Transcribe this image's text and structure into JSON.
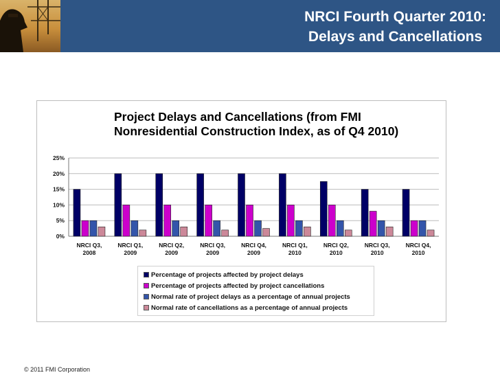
{
  "slide": {
    "title_line1": "NRCI Fourth Quarter 2010:",
    "title_line2": "Delays and Cancellations",
    "footer": "© 2011 FMI Corporation"
  },
  "colors": {
    "header_bg": "#2e5585",
    "series": [
      "#000066",
      "#cc00cc",
      "#3355aa",
      "#cc8899"
    ]
  },
  "chart_data": {
    "type": "bar",
    "title_line1": "Project Delays and Cancellations (from FMI",
    "title_line2": "Nonresidential Construction Index, as of Q4 2010)",
    "categories": [
      "NRCI Q3, 2008",
      "NRCI Q1, 2009",
      "NRCI Q2, 2009",
      "NRCI Q3, 2009",
      "NRCI Q4, 2009",
      "NRCI Q1, 2010",
      "NRCI Q2, 2010",
      "NRCI Q3, 2010",
      "NRCI Q4, 2010"
    ],
    "category_lines": [
      [
        "NRCI Q3,",
        "2008"
      ],
      [
        "NRCI Q1,",
        "2009"
      ],
      [
        "NRCI Q2,",
        "2009"
      ],
      [
        "NRCI Q3,",
        "2009"
      ],
      [
        "NRCI Q4,",
        "2009"
      ],
      [
        "NRCI Q1,",
        "2010"
      ],
      [
        "NRCI Q2,",
        "2010"
      ],
      [
        "NRCI Q3,",
        "2010"
      ],
      [
        "NRCI Q4,",
        "2010"
      ]
    ],
    "series": [
      {
        "name": "Percentage of projects affected by project delays",
        "color": "#000066",
        "values": [
          15,
          20,
          20,
          20,
          20,
          20,
          17.5,
          15,
          15
        ]
      },
      {
        "name": "Percentage of projects affected by project cancellations",
        "color": "#cc00cc",
        "values": [
          5,
          10,
          10,
          10,
          10,
          10,
          10,
          8,
          5
        ]
      },
      {
        "name": "Normal rate of project delays as a percentage of annual projects",
        "color": "#3355aa",
        "values": [
          5,
          5,
          5,
          5,
          5,
          5,
          5,
          5,
          5
        ]
      },
      {
        "name": "Normal rate of cancellations as a percentage of annual projects",
        "color": "#cc8899",
        "values": [
          3,
          2,
          3,
          2,
          2.5,
          3,
          2,
          3,
          2
        ]
      }
    ],
    "y_ticks": [
      "25%",
      "20%",
      "15%",
      "10%",
      "5%",
      "0%"
    ],
    "ylim": [
      0,
      25
    ],
    "grid": true,
    "legend_position": "bottom"
  }
}
